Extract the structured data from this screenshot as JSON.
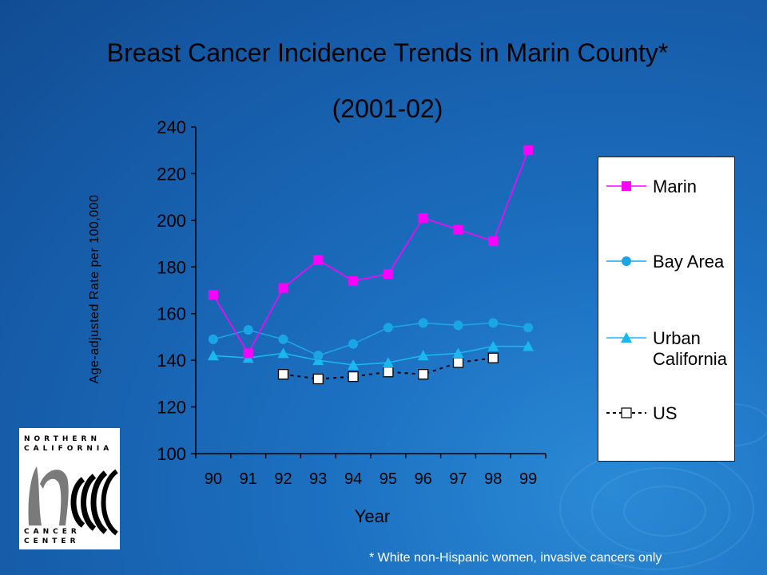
{
  "slide": {
    "title": "Breast Cancer Incidence Trends in Marin County*",
    "subtitle": "(2001-02)",
    "footnote": "* White non-Hispanic women, invasive cancers only"
  },
  "logo": {
    "line1": "NORTHERN",
    "line2": "CALIFORNIA",
    "line3": "CANCER",
    "line4": "CENTER"
  },
  "colors": {
    "marin": "#ff00ff",
    "bay_area": "#1aa6e6",
    "urban_california": "#1ab8f0",
    "us": "#000000"
  },
  "chart_data": {
    "type": "line",
    "title": "Breast Cancer Incidence Trends in Marin County*",
    "subtitle": "(2001-02)",
    "xlabel": "Year",
    "ylabel": "Age-adjusted Rate per 100,000",
    "categories": [
      "90",
      "91",
      "92",
      "93",
      "94",
      "95",
      "96",
      "97",
      "98",
      "99"
    ],
    "ylim": [
      100,
      240
    ],
    "yticks": [
      100,
      120,
      140,
      160,
      180,
      200,
      220,
      240
    ],
    "legend_position": "right",
    "grid": false,
    "series": [
      {
        "name": "Marin",
        "marker": "square",
        "color": "#ff00ff",
        "line": "solid",
        "values": [
          168,
          143,
          171,
          183,
          174,
          177,
          201,
          196,
          191,
          230
        ]
      },
      {
        "name": "Bay Area",
        "marker": "circle",
        "color": "#1aa6e6",
        "line": "solid",
        "values": [
          149,
          153,
          149,
          142,
          147,
          154,
          156,
          155,
          156,
          154
        ]
      },
      {
        "name": "Urban California",
        "marker": "triangle",
        "color": "#1ab8f0",
        "line": "solid",
        "values": [
          142,
          141,
          143,
          140,
          138,
          139,
          142,
          143,
          146,
          146
        ]
      },
      {
        "name": "US",
        "marker": "open-square",
        "color": "#000000",
        "line": "dashed",
        "values": [
          null,
          null,
          134,
          132,
          133,
          135,
          134,
          139,
          141,
          null
        ]
      }
    ]
  }
}
